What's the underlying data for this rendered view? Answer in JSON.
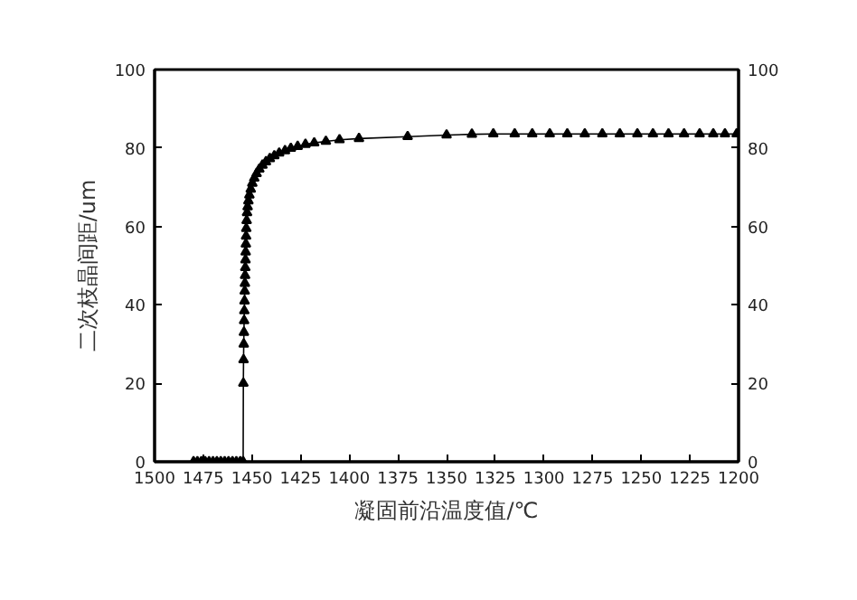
{
  "chart_data": {
    "type": "line",
    "xlabel": "凝固前沿温度值/℃",
    "ylabel": "二次枝晶间距/um",
    "xlim": [
      1500,
      1200
    ],
    "xticks": [
      1500,
      1475,
      1450,
      1425,
      1400,
      1375,
      1350,
      1325,
      1300,
      1275,
      1250,
      1225,
      1200
    ],
    "ylim": [
      0,
      100
    ],
    "yticks": [
      0,
      20,
      40,
      60,
      80,
      100
    ],
    "y2lim": [
      0,
      100
    ],
    "y2ticks": [
      0,
      20,
      40,
      60,
      80,
      100
    ],
    "marker": "triangle",
    "line_style": "solid",
    "grid": false,
    "series": [
      {
        "color": "#000000",
        "x": [
          1480,
          1478,
          1476,
          1474,
          1472,
          1470,
          1468,
          1466,
          1464,
          1462,
          1460,
          1458,
          1456,
          1454.5,
          1454.4,
          1454.3,
          1454.2,
          1454.1,
          1454.0,
          1453.9,
          1453.8,
          1453.7,
          1453.6,
          1453.5,
          1453.4,
          1453.3,
          1453.2,
          1453.1,
          1453.0,
          1452.9,
          1452.7,
          1452.5,
          1452.2,
          1451.8,
          1451.3,
          1450.6,
          1449.8,
          1448.8,
          1447.6,
          1446.2,
          1444.6,
          1442.8,
          1440.8,
          1438.5,
          1436,
          1433,
          1430,
          1426.5,
          1422.5,
          1418,
          1412,
          1405,
          1395,
          1370,
          1350,
          1337,
          1326,
          1315,
          1306,
          1297,
          1288,
          1279,
          1270,
          1261,
          1252,
          1244,
          1236,
          1228,
          1220,
          1213,
          1207,
          1201
        ],
        "values": [
          0,
          0,
          0,
          0,
          0,
          0,
          0,
          0,
          0,
          0,
          0,
          0,
          0,
          0,
          20,
          26,
          30,
          33,
          36,
          38.5,
          41,
          43.5,
          45.5,
          47.5,
          49.5,
          51.5,
          53.5,
          55.5,
          57.5,
          59.5,
          61.5,
          63.5,
          65,
          66.5,
          68,
          69.5,
          71,
          72.3,
          73.5,
          74.6,
          75.6,
          76.5,
          77.3,
          78,
          78.7,
          79.3,
          79.9,
          80.4,
          80.9,
          81.3,
          81.7,
          82.1,
          82.4,
          82.9,
          83.3,
          83.5,
          83.6,
          83.6,
          83.6,
          83.6,
          83.6,
          83.6,
          83.6,
          83.6,
          83.6,
          83.6,
          83.6,
          83.6,
          83.6,
          83.6,
          83.6,
          83.6
        ]
      }
    ]
  }
}
